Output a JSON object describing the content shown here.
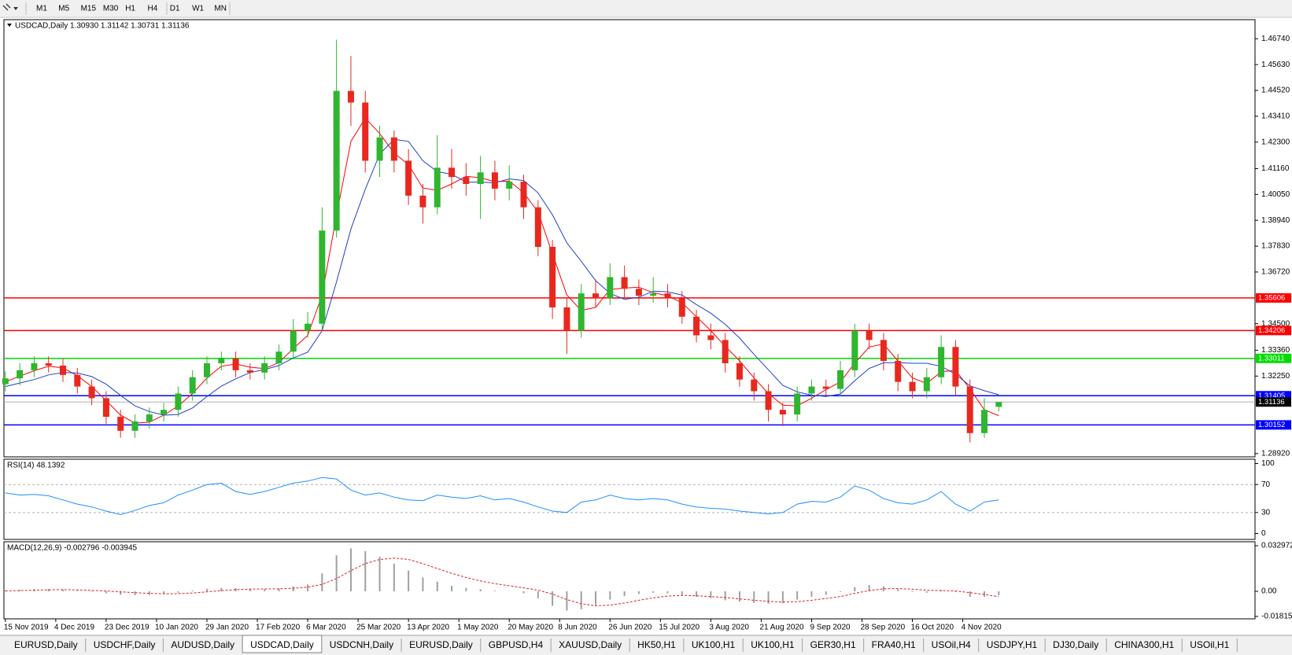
{
  "toolbar": [
    "M1",
    "M5",
    "M15",
    "M30",
    "H1",
    "H4",
    "D1",
    "W1",
    "MN"
  ],
  "tabs": [
    "EURUSD,Daily",
    "USDCHF,Daily",
    "AUDUSD,Daily",
    "USDCAD,Daily",
    "USDCNH,Daily",
    "EURUSD,Daily",
    "GBPUSD,H4",
    "XAUUSD,Daily",
    "HK50,H1",
    "UK100,H1",
    "UK100,H1",
    "GER30,H1",
    "FRA40,H1",
    "USOil,H4",
    "USDJPY,H1",
    "DJ30,Daily",
    "CHINA300,H1",
    "USOil,H1"
  ],
  "active_tab": 3,
  "chart_data": [
    {
      "type": "candlestick",
      "title": "USDCAD,Daily 1.30930 1.31142 1.30731 1.31136",
      "up_color": "#2fb52f",
      "down_color": "#e8281e",
      "xlim": [
        -0.1,
        86.8
      ],
      "xticks": [
        {
          "value": 0,
          "label": "15 Nov 2019"
        },
        {
          "value": 3.5,
          "label": "4 Dec 2019"
        },
        {
          "value": 7,
          "label": "23 Dec 2019"
        },
        {
          "value": 10.5,
          "label": "10 Jan 2020"
        },
        {
          "value": 14,
          "label": "29 Jan 2020"
        },
        {
          "value": 17.5,
          "label": "17 Feb 2020"
        },
        {
          "value": 21,
          "label": "6 Mar 2020"
        },
        {
          "value": 24.5,
          "label": "25 Mar 2020"
        },
        {
          "value": 28,
          "label": "13 Apr 2020"
        },
        {
          "value": 31.5,
          "label": "1 May 2020"
        },
        {
          "value": 35,
          "label": "20 May 2020"
        },
        {
          "value": 38.5,
          "label": "8 Jun 2020"
        },
        {
          "value": 42,
          "label": "26 Jun 2020"
        },
        {
          "value": 45.5,
          "label": "15 Jul 2020"
        },
        {
          "value": 49,
          "label": "3 Aug 2020"
        },
        {
          "value": 52.5,
          "label": "21 Aug 2020"
        },
        {
          "value": 56,
          "label": "9 Sep 2020"
        },
        {
          "value": 59.5,
          "label": "28 Sep 2020"
        },
        {
          "value": 63,
          "label": "16 Oct 2020"
        },
        {
          "value": 66.5,
          "label": "4 Nov 2020"
        }
      ],
      "ylim": [
        1.2878,
        1.4756
      ],
      "yticks": [
        {
          "value": 1.4674,
          "label": "1.46740"
        },
        {
          "value": 1.4563,
          "label": "1.45630"
        },
        {
          "value": 1.4452,
          "label": "1.44520"
        },
        {
          "value": 1.4341,
          "label": "1.43410"
        },
        {
          "value": 1.423,
          "label": "1.42300"
        },
        {
          "value": 1.4116,
          "label": "1.41160"
        },
        {
          "value": 1.4005,
          "label": "1.40050"
        },
        {
          "value": 1.3894,
          "label": "1.38940"
        },
        {
          "value": 1.3783,
          "label": "1.37830"
        },
        {
          "value": 1.3672,
          "label": "1.36720"
        },
        {
          "value": 1.345,
          "label": "1.34500"
        },
        {
          "value": 1.3336,
          "label": "1.33360"
        },
        {
          "value": 1.3225,
          "label": "1.32250"
        },
        {
          "value": 1.2892,
          "label": "1.28920"
        }
      ],
      "levels": [
        {
          "value": 1.35606,
          "color": "#ff0000"
        },
        {
          "value": 1.34206,
          "color": "#ff0000"
        },
        {
          "value": 1.33011,
          "color": "#00dd00"
        },
        {
          "value": 1.31405,
          "color": "#0000ff"
        },
        {
          "value": 1.30152,
          "color": "#0000ff"
        }
      ],
      "current_price": 1.31136,
      "candles": {
        "open": [
          1.319,
          1.3215,
          1.325,
          1.328,
          1.327,
          1.323,
          1.318,
          1.313,
          1.305,
          1.299,
          1.303,
          1.306,
          1.308,
          1.315,
          1.322,
          1.328,
          1.33,
          1.325,
          1.324,
          1.328,
          1.333,
          1.342,
          1.345,
          1.385,
          1.445,
          1.44,
          1.415,
          1.425,
          1.415,
          1.4,
          1.395,
          1.412,
          1.408,
          1.405,
          1.41,
          1.403,
          1.406,
          1.395,
          1.378,
          1.352,
          1.342,
          1.358,
          1.356,
          1.365,
          1.36,
          1.357,
          1.358,
          1.356,
          1.348,
          1.34,
          1.338,
          1.328,
          1.321,
          1.316,
          1.308,
          1.306,
          1.315,
          1.318,
          1.317,
          1.325,
          1.342,
          1.338,
          1.329,
          1.32,
          1.316,
          1.322,
          1.335,
          1.318,
          1.298,
          1.3093
        ],
        "high": [
          1.3245,
          1.328,
          1.331,
          1.331,
          1.33,
          1.326,
          1.321,
          1.316,
          1.308,
          1.306,
          1.309,
          1.311,
          1.318,
          1.325,
          1.331,
          1.333,
          1.333,
          1.328,
          1.331,
          1.336,
          1.347,
          1.35,
          1.395,
          1.467,
          1.46,
          1.445,
          1.43,
          1.428,
          1.42,
          1.405,
          1.426,
          1.42,
          1.414,
          1.417,
          1.415,
          1.413,
          1.409,
          1.398,
          1.381,
          1.356,
          1.362,
          1.364,
          1.371,
          1.37,
          1.364,
          1.365,
          1.362,
          1.359,
          1.351,
          1.345,
          1.341,
          1.331,
          1.324,
          1.319,
          1.311,
          1.318,
          1.321,
          1.321,
          1.329,
          1.345,
          1.345,
          1.341,
          1.332,
          1.324,
          1.326,
          1.34,
          1.338,
          1.321,
          1.313,
          1.31142
        ],
        "low": [
          1.316,
          1.3185,
          1.322,
          1.324,
          1.32,
          1.315,
          1.31,
          1.302,
          1.296,
          1.296,
          1.3,
          1.303,
          1.305,
          1.312,
          1.319,
          1.325,
          1.322,
          1.321,
          1.321,
          1.325,
          1.33,
          1.339,
          1.342,
          1.382,
          1.43,
          1.41,
          1.408,
          1.41,
          1.396,
          1.388,
          1.392,
          1.403,
          1.4,
          1.39,
          1.398,
          1.398,
          1.39,
          1.374,
          1.347,
          1.332,
          1.339,
          1.352,
          1.353,
          1.356,
          1.353,
          1.354,
          1.352,
          1.345,
          1.337,
          1.334,
          1.324,
          1.318,
          1.312,
          1.303,
          1.301,
          1.303,
          1.312,
          1.314,
          1.314,
          1.322,
          1.334,
          1.325,
          1.316,
          1.313,
          1.313,
          1.319,
          1.314,
          1.294,
          1.296,
          1.30731
        ],
        "close": [
          1.3215,
          1.325,
          1.328,
          1.327,
          1.323,
          1.318,
          1.313,
          1.305,
          1.299,
          1.303,
          1.306,
          1.308,
          1.315,
          1.322,
          1.328,
          1.33,
          1.325,
          1.324,
          1.328,
          1.333,
          1.342,
          1.345,
          1.385,
          1.445,
          1.44,
          1.415,
          1.425,
          1.415,
          1.4,
          1.395,
          1.412,
          1.408,
          1.405,
          1.41,
          1.403,
          1.406,
          1.395,
          1.378,
          1.352,
          1.342,
          1.358,
          1.356,
          1.365,
          1.36,
          1.357,
          1.358,
          1.356,
          1.348,
          1.34,
          1.338,
          1.328,
          1.321,
          1.316,
          1.308,
          1.306,
          1.315,
          1.318,
          1.317,
          1.325,
          1.342,
          1.338,
          1.329,
          1.32,
          1.316,
          1.322,
          1.335,
          1.318,
          1.298,
          1.308,
          1.31136
        ]
      },
      "lines": [
        {
          "color": "#ff0000",
          "values": [
            1.32,
            1.3225,
            1.3248,
            1.3267,
            1.326,
            1.3227,
            1.318,
            1.312,
            1.3057,
            1.3023,
            1.3027,
            1.3057,
            1.3097,
            1.315,
            1.3217,
            1.3267,
            1.3277,
            1.3263,
            1.3257,
            1.3283,
            1.3343,
            1.34,
            1.3573,
            1.3917,
            1.4233,
            1.4333,
            1.4267,
            1.4183,
            1.4133,
            1.4033,
            1.4023,
            1.405,
            1.4083,
            1.4077,
            1.406,
            1.4063,
            1.4013,
            1.393,
            1.375,
            1.3573,
            1.3507,
            1.352,
            1.3597,
            1.3603,
            1.3607,
            1.3583,
            1.357,
            1.354,
            1.348,
            1.342,
            1.3353,
            1.329,
            1.3217,
            1.315,
            1.31,
            1.3097,
            1.313,
            1.3167,
            1.32,
            1.328,
            1.335,
            1.3363,
            1.329,
            1.3217,
            1.3193,
            1.3243,
            1.325,
            1.317,
            1.308,
            1.3055
          ]
        },
        {
          "color": "#1f3fcf",
          "values": [
            1.318,
            1.3195,
            1.321,
            1.323,
            1.324,
            1.3238,
            1.3223,
            1.319,
            1.3142,
            1.3097,
            1.3073,
            1.3057,
            1.306,
            1.3088,
            1.3137,
            1.3182,
            1.3213,
            1.324,
            1.3253,
            1.327,
            1.3303,
            1.3328,
            1.342,
            1.363,
            1.3857,
            1.4028,
            1.4178,
            1.4242,
            1.4233,
            1.415,
            1.4103,
            1.4092,
            1.4058,
            1.4058,
            1.4055,
            1.4072,
            1.4065,
            1.4012,
            1.3918,
            1.3797,
            1.3718,
            1.3635,
            1.358,
            1.3555,
            1.3563,
            1.359,
            1.3587,
            1.3573,
            1.3532,
            1.3495,
            1.3447,
            1.3388,
            1.3318,
            1.3252,
            1.3185,
            1.3157,
            1.3143,
            1.3137,
            1.3148,
            1.3205,
            1.3258,
            1.3282,
            1.3283,
            1.328,
            1.328,
            1.3267,
            1.3233,
            1.3183,
            1.3162,
            1.3145
          ]
        }
      ]
    },
    {
      "type": "line",
      "title": "RSI(14) 48.1392",
      "color": "#1e90ff",
      "ylim": [
        -8.4,
        106.2
      ],
      "yticks": [
        100,
        70,
        30,
        0
      ],
      "values": [
        58,
        55,
        56,
        54,
        48,
        42,
        38,
        32,
        27,
        33,
        40,
        44,
        55,
        62,
        70,
        72,
        60,
        56,
        60,
        66,
        72,
        75,
        80,
        78,
        62,
        55,
        58,
        52,
        48,
        47,
        55,
        52,
        50,
        54,
        48,
        50,
        45,
        38,
        32,
        30,
        45,
        48,
        55,
        50,
        48,
        50,
        48,
        42,
        38,
        36,
        35,
        32,
        30,
        28,
        30,
        42,
        46,
        45,
        52,
        68,
        62,
        50,
        44,
        42,
        48,
        60,
        42,
        32,
        45,
        48.1392
      ]
    },
    {
      "type": "macd",
      "title": "MACD(12,26,9) -0.002796 -0.003945",
      "color": "#a0a0a0",
      "signal_color": "#e02020",
      "ylim": [
        -0.0199,
        0.0358
      ],
      "yticks": [
        0.032972,
        {
          "value": 0,
          "label": "0.00"
        },
        -0.018154
      ],
      "values": [
        0.0005,
        0.001,
        0.0015,
        0.0017,
        0.0012,
        0.0005,
        -0.0005,
        -0.0015,
        -0.0025,
        -0.0028,
        -0.0026,
        -0.002,
        -0.001,
        0.0005,
        0.0018,
        0.0025,
        0.0023,
        0.0018,
        0.0015,
        0.002,
        0.0035,
        0.005,
        0.013,
        0.026,
        0.031,
        0.029,
        0.025,
        0.02,
        0.015,
        0.01,
        0.007,
        0.004,
        0.0025,
        0.0015,
        0.0005,
        0.0002,
        -0.0015,
        -0.005,
        -0.0105,
        -0.014,
        -0.013,
        -0.01,
        -0.006,
        -0.0035,
        -0.002,
        -0.0012,
        -0.0015,
        -0.0025,
        -0.004,
        -0.005,
        -0.0065,
        -0.0075,
        -0.0085,
        -0.009,
        -0.0085,
        -0.006,
        -0.004,
        -0.0025,
        -0.0005,
        0.003,
        0.0045,
        0.0035,
        0.0015,
        -0.0005,
        -0.001,
        0.001,
        -0.0005,
        -0.004,
        -0.004,
        -0.002796
      ],
      "signal": [
        0.0003,
        0.0005,
        0.0008,
        0.0011,
        0.0012,
        0.001,
        0.0007,
        0.0002,
        -0.0004,
        -0.001,
        -0.0015,
        -0.0018,
        -0.0017,
        -0.0012,
        -0.0004,
        0.0005,
        0.0012,
        0.0016,
        0.0017,
        0.0018,
        0.0022,
        0.003,
        0.005,
        0.0092,
        0.015,
        0.02,
        0.023,
        0.024,
        0.023,
        0.02,
        0.0165,
        0.013,
        0.01,
        0.0075,
        0.0055,
        0.004,
        0.0025,
        0.0008,
        -0.002,
        -0.006,
        -0.009,
        -0.0105,
        -0.01,
        -0.0085,
        -0.0065,
        -0.0048,
        -0.0035,
        -0.003,
        -0.0032,
        -0.0038,
        -0.0045,
        -0.0055,
        -0.0065,
        -0.0073,
        -0.0078,
        -0.0075,
        -0.0065,
        -0.0052,
        -0.0038,
        -0.0015,
        0.0005,
        0.0018,
        0.002,
        0.0015,
        0.0008,
        0.0005,
        0.0002,
        -0.001,
        -0.0022,
        -0.003945
      ]
    }
  ]
}
